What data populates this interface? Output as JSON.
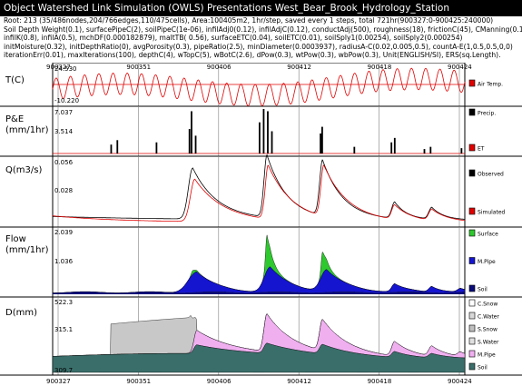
{
  "window": {
    "title": "Object Watershed Link Simulation (OWLS) Presentations    West_Bear_Brook_Hydrology_Station"
  },
  "info_lines": [
    "Root: 213 (35/486nodes,204/766edges,110/475cells), Area:100405m2, 1hr/step, saved every 1 steps, total 721hr(900327:0-900425:240000)",
    "Soil Depth Weight(0.1), surfacePipeC(2), soilPipeC(1e-06), infilAdj0(0.12), infilAdjC(0.12), conductAdj(500), roughness(18), frictionC(45), CManning(0.1)",
    "infilK(0.8), infilA(0.5), mchDF(0.000182879), maltTB( 0.56), surfaceETC(0.04), soilETC(0.01), soilSply1(0.00254), soilSply2(0.000254)",
    "initMoisture(0.32), initDepthRatio(0), avgPorosity(0.3), pipeRatio(2.5), minDiameter(0.0003937), radiusA-C(0.02,0.005,0.5), countA-E(1,0.5,0.5,0,0)",
    "iterationErr(0.01), maxIterations(100), depthC(4), wTopC(5), wBotC(2.6), dPow(0.3), wtPow(0.3), wbPow(0.3), Unit(ENGLISH/SI), ERS(sq.Length)."
  ],
  "x_ticks": [
    "900327",
    "900351",
    "900406",
    "900412",
    "900418",
    "900424"
  ],
  "panels": [
    {
      "id": "temp",
      "ylabel": "T(C)",
      "ymax": "24.530",
      "ymin": "-10.220",
      "legend": [
        {
          "label": "Air Temp.",
          "color": "#e00000"
        }
      ]
    },
    {
      "id": "precip",
      "ylabel": "P&E\n(mm/1hr)",
      "ymax": "7.037",
      "ymid": "3.514",
      "legend": [
        {
          "label": "Precip.",
          "color": "#000000"
        },
        {
          "label": "ET",
          "color": "#e00000"
        }
      ]
    },
    {
      "id": "discharge",
      "ylabel": "Q(m3/s)",
      "ymax": "0.056",
      "ymid": "0.028",
      "legend": [
        {
          "label": "Observed",
          "color": "#000000"
        },
        {
          "label": "Simulated",
          "color": "#e00000"
        }
      ]
    },
    {
      "id": "flow",
      "ylabel": "Flow\n(mm/1hr)",
      "ymax": "2.039",
      "ymid": "1.036",
      "legend": [
        {
          "label": "Surface",
          "color": "#2ec92e"
        },
        {
          "label": "M.Pipe",
          "color": "#1515d0"
        },
        {
          "label": "Soil",
          "color": "#0a0a7a"
        }
      ]
    },
    {
      "id": "depth",
      "ylabel": "D(mm)",
      "ymax": "522.3",
      "ymid": "315.1",
      "ymin": "309.7",
      "legend": [
        {
          "label": "C.Snow",
          "color": "#ffffff"
        },
        {
          "label": "C.Water",
          "color": "#d8d8d8"
        },
        {
          "label": "S.Snow",
          "color": "#c0c0c0"
        },
        {
          "label": "S.Water",
          "color": "#e0e0e0"
        },
        {
          "label": "M.Pipe",
          "color": "#f0b0f0"
        },
        {
          "label": "Soil",
          "color": "#3a6e6a"
        }
      ]
    }
  ],
  "colors": {
    "grid": "#7f7f7f",
    "background": "#ffffff",
    "frame": "#000000"
  }
}
